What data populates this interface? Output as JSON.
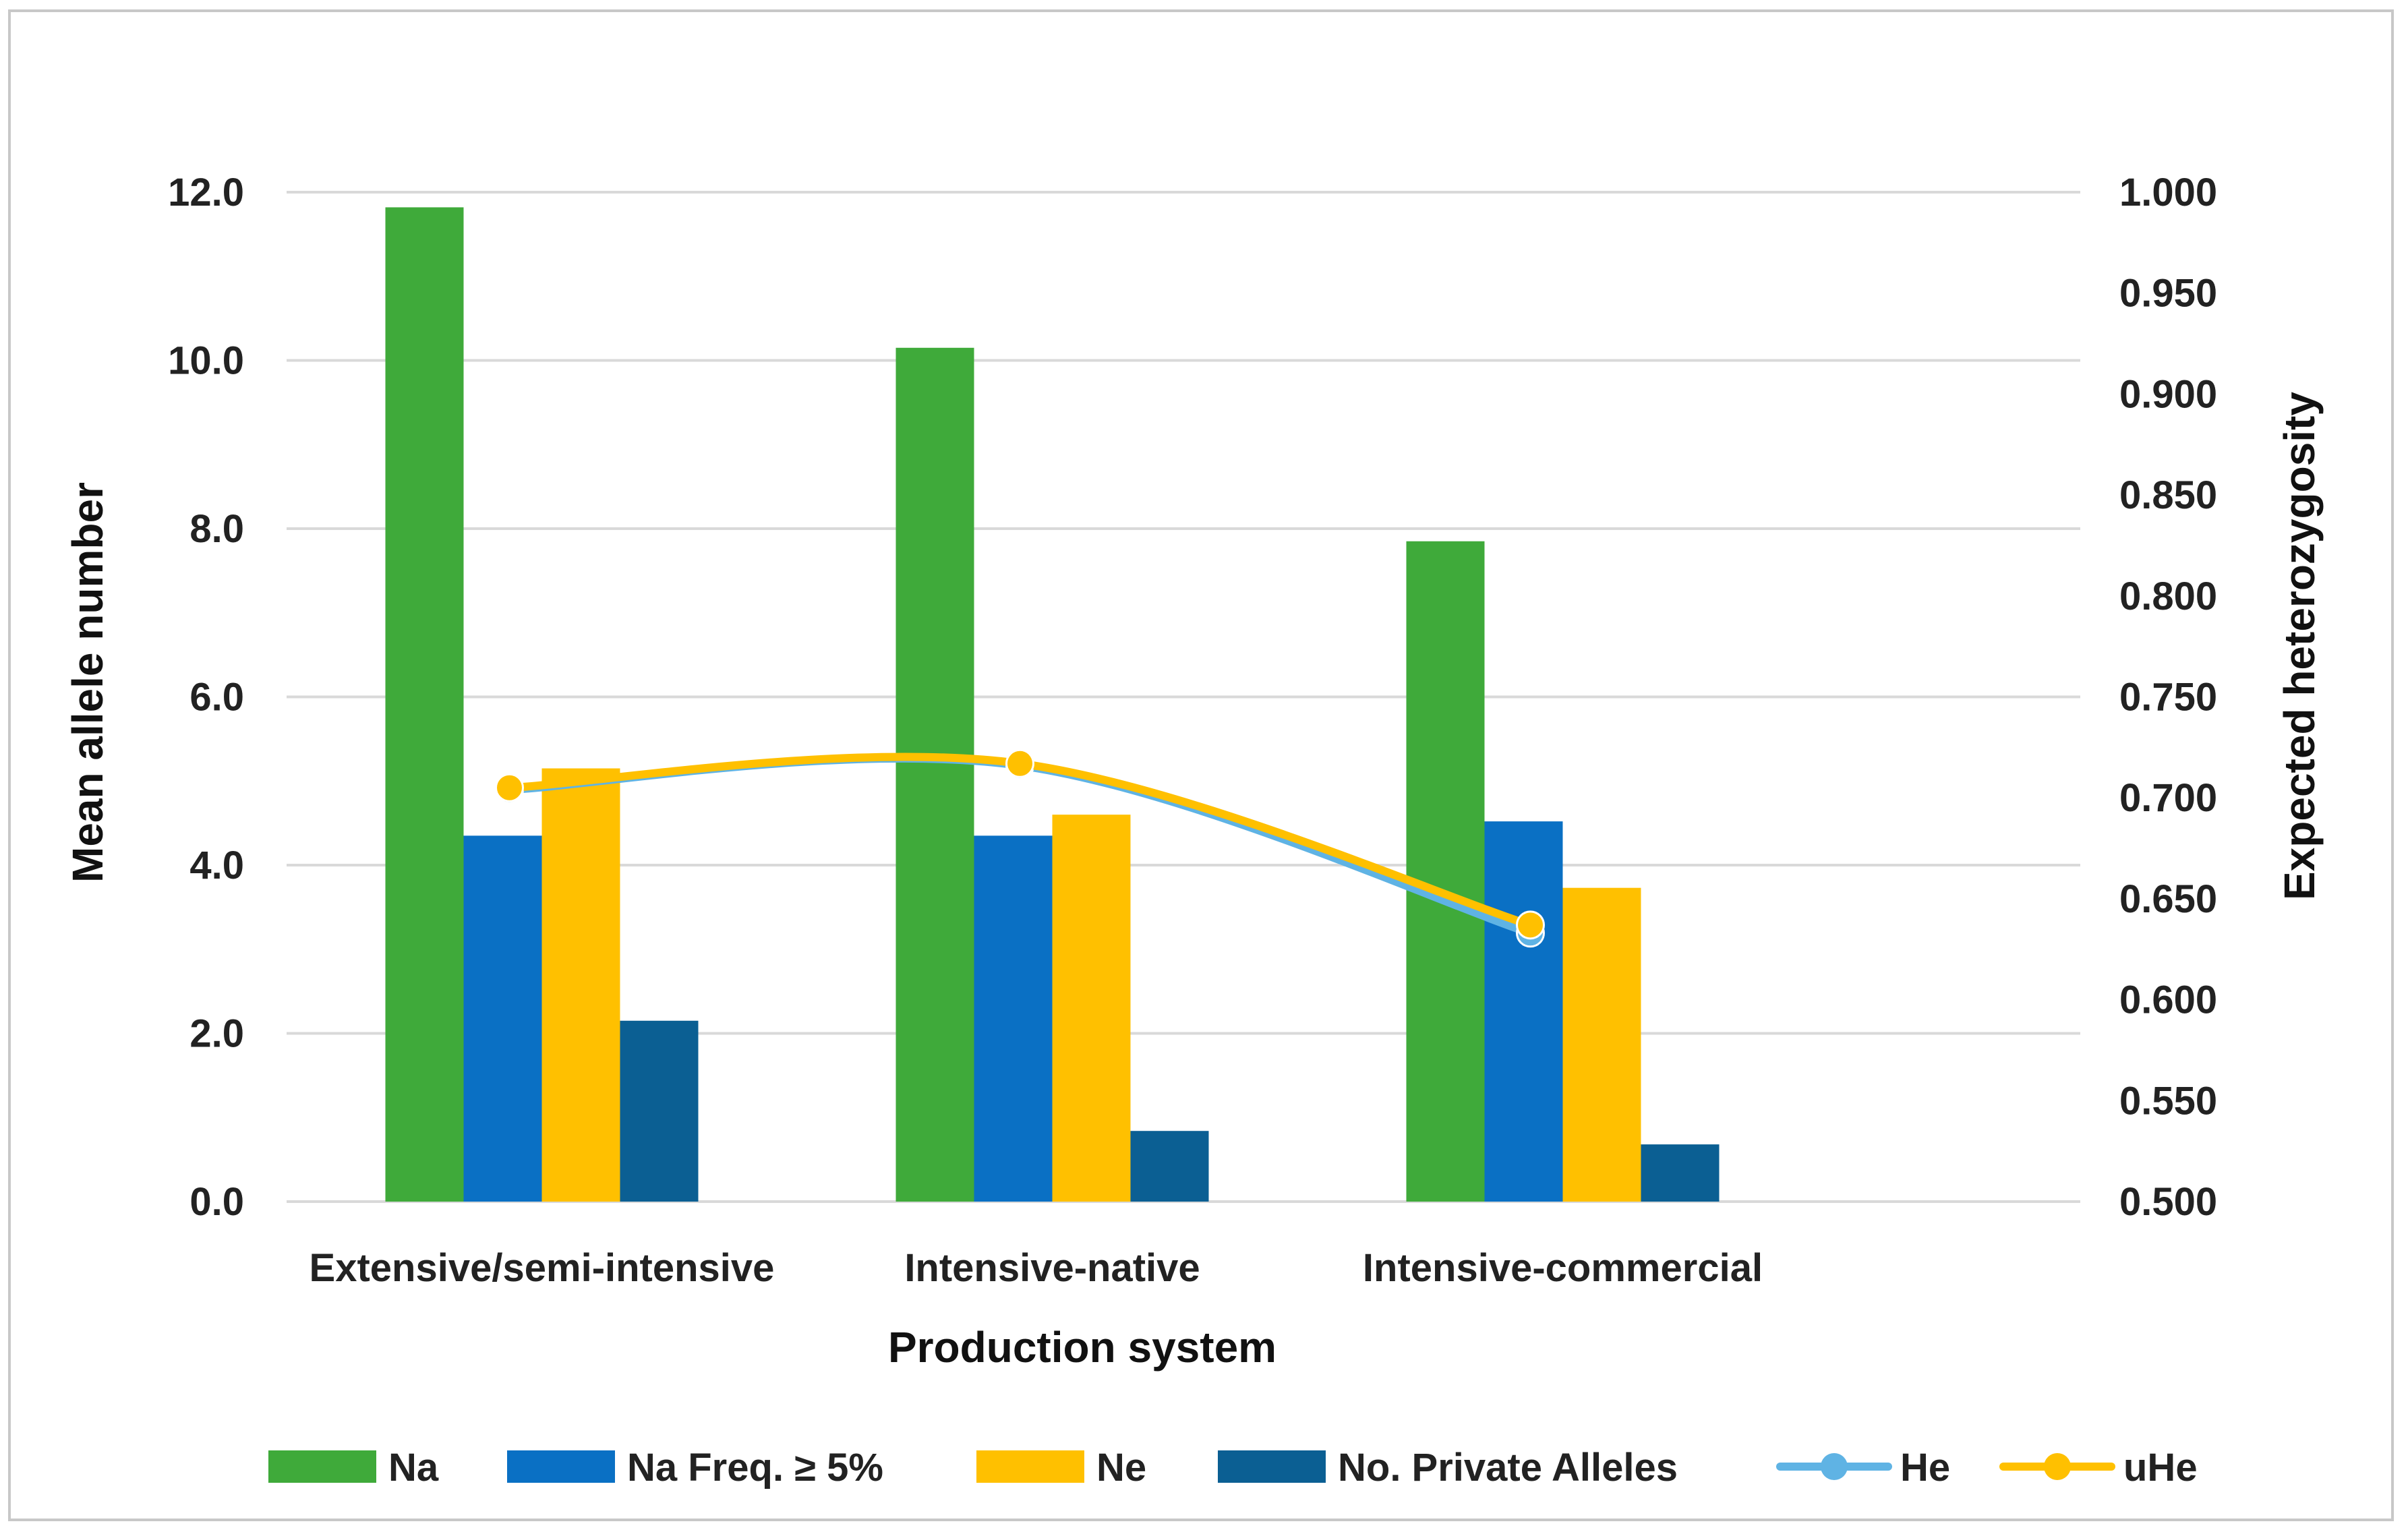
{
  "chart_data": {
    "type": "bar",
    "title": "",
    "xlabel": "Production system",
    "ylabel": "Mean allele number",
    "y2label": "Expected heterozygosity",
    "categories": [
      "Extensive/semi-intensive",
      "Intensive-native",
      "Intensive-commercial"
    ],
    "ylim": [
      0,
      12
    ],
    "y_ticks": [
      "0.0",
      "2.0",
      "4.0",
      "6.0",
      "8.0",
      "10.0",
      "12.0"
    ],
    "y2lim": [
      0.5,
      1.0
    ],
    "y2_ticks": [
      "0.500",
      "0.550",
      "0.600",
      "0.650",
      "0.700",
      "0.750",
      "0.800",
      "0.850",
      "0.900",
      "0.950",
      "1.000"
    ],
    "grid": true,
    "legend_position": "bottom",
    "series": [
      {
        "name": "Na",
        "type": "bar",
        "axis": "left",
        "color": "#3faa3a",
        "values": [
          11.82,
          10.15,
          7.85
        ]
      },
      {
        "name": "Na Freq. ≥ 5%",
        "type": "bar",
        "axis": "left",
        "color": "#0a70c4",
        "values": [
          4.35,
          4.35,
          4.52
        ]
      },
      {
        "name": "Ne",
        "type": "bar",
        "axis": "left",
        "color": "#ffc000",
        "values": [
          5.15,
          4.6,
          3.73
        ]
      },
      {
        "name": "No. Private Alleles",
        "type": "bar",
        "axis": "left",
        "color": "#0b5f93",
        "values": [
          2.15,
          0.84,
          0.68
        ]
      },
      {
        "name": "He",
        "type": "line",
        "axis": "right",
        "color": "#5fb3e4",
        "values": [
          0.704,
          0.716,
          0.633
        ]
      },
      {
        "name": "uHe",
        "type": "line",
        "axis": "right",
        "color": "#ffc000",
        "values": [
          0.705,
          0.717,
          0.637
        ]
      }
    ]
  }
}
